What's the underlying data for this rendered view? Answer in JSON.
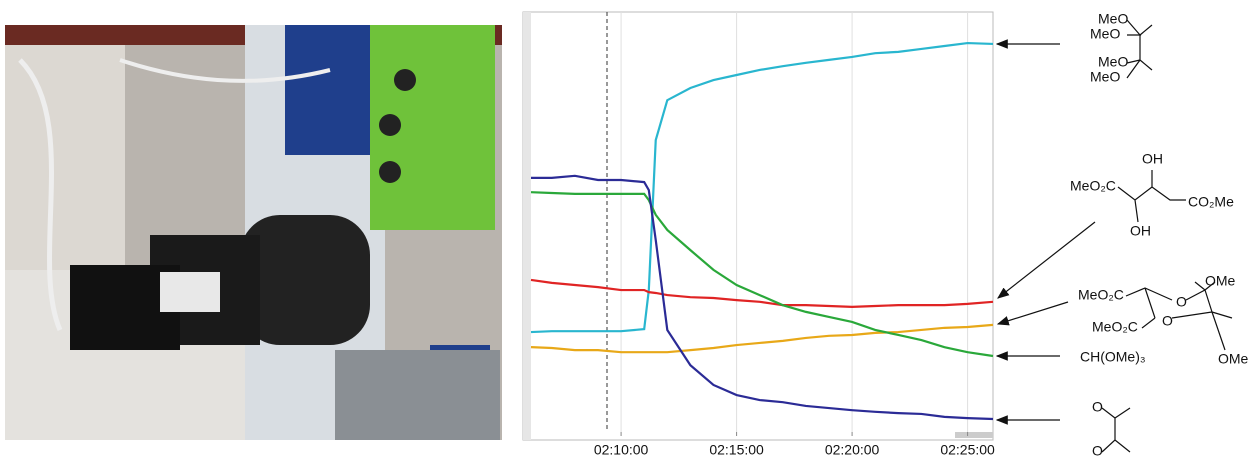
{
  "chart_data": {
    "type": "line",
    "x": [
      6.1,
      7,
      8,
      9,
      10,
      11,
      11.2,
      11.5,
      12,
      13,
      14,
      15,
      16,
      17,
      18,
      19,
      20,
      21,
      22,
      23,
      24,
      25,
      26.1
    ],
    "xlim": [
      6.1,
      26.1
    ],
    "xticks": [
      {
        "value": 10,
        "label": "02:10:00"
      },
      {
        "value": 15,
        "label": "02:15:00"
      },
      {
        "value": 20,
        "label": "02:20:00"
      },
      {
        "value": 25,
        "label": "02:25:00"
      }
    ],
    "ylim": [
      0,
      100
    ],
    "series": [
      {
        "color": "#29b6cf",
        "values": [
          23.8,
          24,
          24,
          24,
          24,
          24.5,
          33.8,
          69.5,
          79,
          81.9,
          83.8,
          85,
          86.2,
          87.1,
          87.9,
          88.6,
          89.3,
          90.2,
          90.5,
          91.2,
          91.9,
          92.6,
          92.4
        ]
      },
      {
        "color": "#e02424",
        "values": [
          36.2,
          35.5,
          35,
          34.5,
          33.8,
          33.8,
          33.3,
          33.1,
          32.6,
          32.1,
          31.9,
          31.4,
          31,
          30.2,
          30.2,
          30,
          29.8,
          30,
          30.2,
          30.2,
          30.2,
          30.5,
          31
        ]
      },
      {
        "color": "#e8a818",
        "values": [
          20.2,
          20,
          19.5,
          19.5,
          19,
          19,
          19,
          19,
          19,
          19.5,
          20,
          20.7,
          21.2,
          21.7,
          22.4,
          22.9,
          23.1,
          23.6,
          23.8,
          24.3,
          24.8,
          25,
          25.5
        ]
      },
      {
        "name": "CH(OMe)₃",
        "color": "#2aa83a",
        "values": [
          57.1,
          56.9,
          56.7,
          56.7,
          56.7,
          56.7,
          55.2,
          51.7,
          48.1,
          43.3,
          38.6,
          35,
          32.6,
          30.2,
          28.6,
          27.4,
          26.2,
          24.3,
          23.1,
          21.9,
          20.2,
          19,
          18.1
        ]
      },
      {
        "color": "#2b2b96",
        "values": [
          60.5,
          60.5,
          61,
          60,
          60,
          59.5,
          57.6,
          45.7,
          24.3,
          15.9,
          11.2,
          8.8,
          7.6,
          7.1,
          6.2,
          5.7,
          5.2,
          4.8,
          4.5,
          4.3,
          3.6,
          3.3,
          3.1
        ]
      }
    ],
    "annotations": [
      {
        "texts": [
          "MeO",
          "MeO",
          "MeO",
          "MeO"
        ]
      },
      {
        "texts": [
          "MeO₂C",
          "OH",
          "CO₂Me",
          "OH"
        ]
      },
      {
        "texts": [
          "OMe",
          "MeO₂C",
          "O",
          "MeO₂C",
          "O",
          "OMe"
        ]
      },
      {
        "texts": [
          "O",
          "O"
        ]
      }
    ]
  }
}
